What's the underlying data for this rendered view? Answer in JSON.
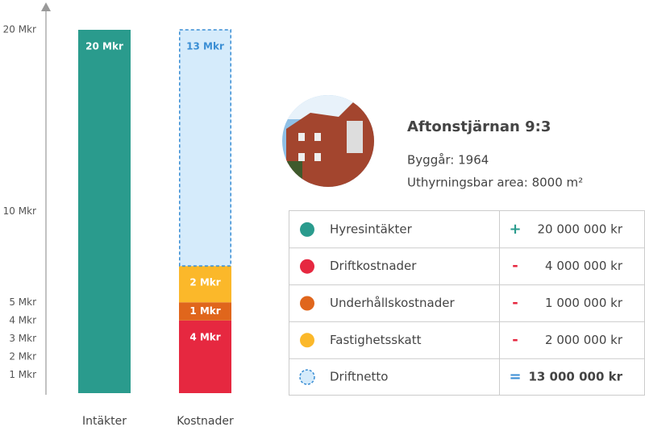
{
  "chart_data": {
    "type": "stacked_bar",
    "categories": [
      "Intäkter",
      "Kostnader"
    ],
    "ylim": [
      0,
      20
    ],
    "yticks": [
      {
        "value": 1,
        "label": "1 Mkr"
      },
      {
        "value": 2,
        "label": "2 Mkr"
      },
      {
        "value": 3,
        "label": "3 Mkr"
      },
      {
        "value": 4,
        "label": "4 Mkr"
      },
      {
        "value": 5,
        "label": "5 Mkr"
      },
      {
        "value": 10,
        "label": "10 Mkr"
      },
      {
        "value": 20,
        "label": "20 Mkr"
      }
    ],
    "series": [
      {
        "name": "Hyresintäkter",
        "color": "#2a9b8d",
        "values": [
          20,
          null
        ],
        "value_labels": [
          "20 Mkr",
          null
        ]
      },
      {
        "name": "Driftkostnader",
        "color": "#e62840",
        "values": [
          null,
          4
        ],
        "value_labels": [
          null,
          "4 Mkr"
        ]
      },
      {
        "name": "Underhållskostnader",
        "color": "#e0661c",
        "values": [
          null,
          1
        ],
        "value_labels": [
          null,
          "1 Mkr"
        ]
      },
      {
        "name": "Fastighetsskatt",
        "color": "#fbb82a",
        "values": [
          null,
          2
        ],
        "value_labels": [
          null,
          "2 Mkr"
        ]
      },
      {
        "name": "Driftnetto",
        "color": "#d5ebfb",
        "border": "#3a8ed4",
        "style": "dashed",
        "values": [
          null,
          13
        ],
        "value_labels": [
          null,
          "13 Mkr"
        ]
      }
    ]
  },
  "property": {
    "name": "Aftonstjärnan 9:3",
    "details": [
      "Byggår: 1964",
      "Uthyrningsbar area: 8000 m²"
    ]
  },
  "table": {
    "rows": [
      {
        "sign": "+",
        "amount": "20 000 000 kr"
      },
      {
        "sign": "-",
        "amount": "4 000 000 kr"
      },
      {
        "sign": "-",
        "amount": "1 000 000 kr"
      },
      {
        "sign": "-",
        "amount": "2 000 000 kr"
      },
      {
        "sign": "=",
        "amount": "13 000 000 kr"
      }
    ]
  }
}
